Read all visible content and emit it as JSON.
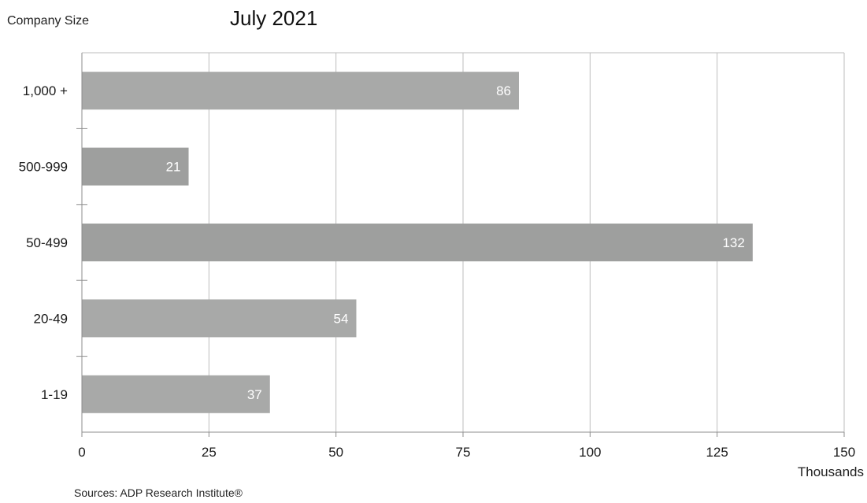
{
  "chart_data": {
    "type": "bar",
    "orientation": "horizontal",
    "title": "July 2021",
    "ylabel": "Company Size",
    "xlabel": "",
    "unit_label": "Thousands",
    "categories": [
      "1,000 +",
      "500-999",
      "50-499",
      "20-49",
      "1-19"
    ],
    "values": [
      86,
      21,
      132,
      54,
      37
    ],
    "xlim": [
      0,
      150
    ],
    "xticks": [
      0,
      25,
      50,
      75,
      100,
      125,
      150
    ],
    "grid": "vertical",
    "legend": "none",
    "colors": {
      "bar": "#a8a9a8",
      "bar_highlight": "#9e9f9e",
      "grid": "#bdbdbd",
      "axis": "#8c8c8c",
      "data_label": "#ffffff"
    }
  },
  "footer": {
    "source": "Sources: ADP Research Institute®"
  }
}
